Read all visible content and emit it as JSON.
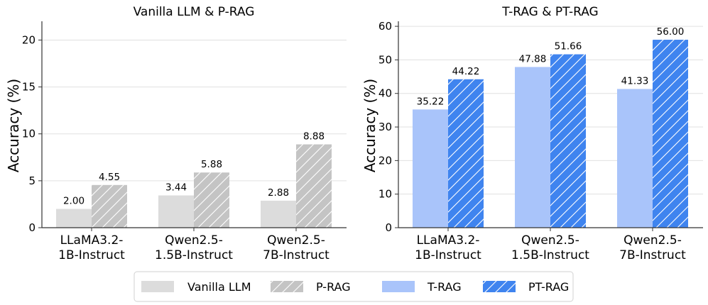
{
  "chart_data": [
    {
      "type": "bar",
      "title": "Vanilla LLM & P-RAG",
      "xlabel": "",
      "ylabel": "Accuracy (%)",
      "ylim": [
        0,
        22
      ],
      "yticks": [
        0,
        5,
        10,
        15,
        20
      ],
      "categories": [
        [
          "LLaMA3.2-",
          "1B-Instruct"
        ],
        [
          "Qwen2.5-",
          "1.5B-Instruct"
        ],
        [
          "Qwen2.5-",
          "7B-Instruct"
        ]
      ],
      "value_labels": [
        [
          "2.00",
          "4.55"
        ],
        [
          "3.44",
          "5.88"
        ],
        [
          "2.88",
          "8.88"
        ]
      ],
      "series": [
        {
          "name": "Vanilla LLM",
          "color": "#dcdcdc",
          "hatch": false,
          "values": [
            2.0,
            3.44,
            2.88
          ]
        },
        {
          "name": "P-RAG",
          "color": "#c4c4c4",
          "hatch": true,
          "values": [
            4.55,
            5.88,
            8.88
          ]
        }
      ]
    },
    {
      "type": "bar",
      "title": "T-RAG & PT-RAG",
      "xlabel": "",
      "ylabel": "Accuracy (%)",
      "ylim": [
        0,
        61.5
      ],
      "yticks": [
        0,
        10,
        20,
        30,
        40,
        50,
        60
      ],
      "categories": [
        [
          "LLaMA3.2-",
          "1B-Instruct"
        ],
        [
          "Qwen2.5-",
          "1.5B-Instruct"
        ],
        [
          "Qwen2.5-",
          "7B-Instruct"
        ]
      ],
      "value_labels": [
        [
          "35.22",
          "44.22"
        ],
        [
          "47.88",
          "51.66"
        ],
        [
          "41.33",
          "56.00"
        ]
      ],
      "series": [
        {
          "name": "T-RAG",
          "color": "#a9c4fa",
          "hatch": false,
          "values": [
            35.22,
            47.88,
            41.33
          ]
        },
        {
          "name": "PT-RAG",
          "color": "#3f84ef",
          "hatch": true,
          "values": [
            44.22,
            51.66,
            56.0
          ]
        }
      ]
    }
  ],
  "legend": {
    "placement": "bottom-center",
    "items": [
      {
        "label": "Vanilla LLM",
        "color": "#dcdcdc",
        "hatch": false
      },
      {
        "label": "P-RAG",
        "color": "#c4c4c4",
        "hatch": true
      },
      {
        "label": "T-RAG",
        "color": "#a9c4fa",
        "hatch": false
      },
      {
        "label": "PT-RAG",
        "color": "#3f84ef",
        "hatch": true
      }
    ]
  }
}
